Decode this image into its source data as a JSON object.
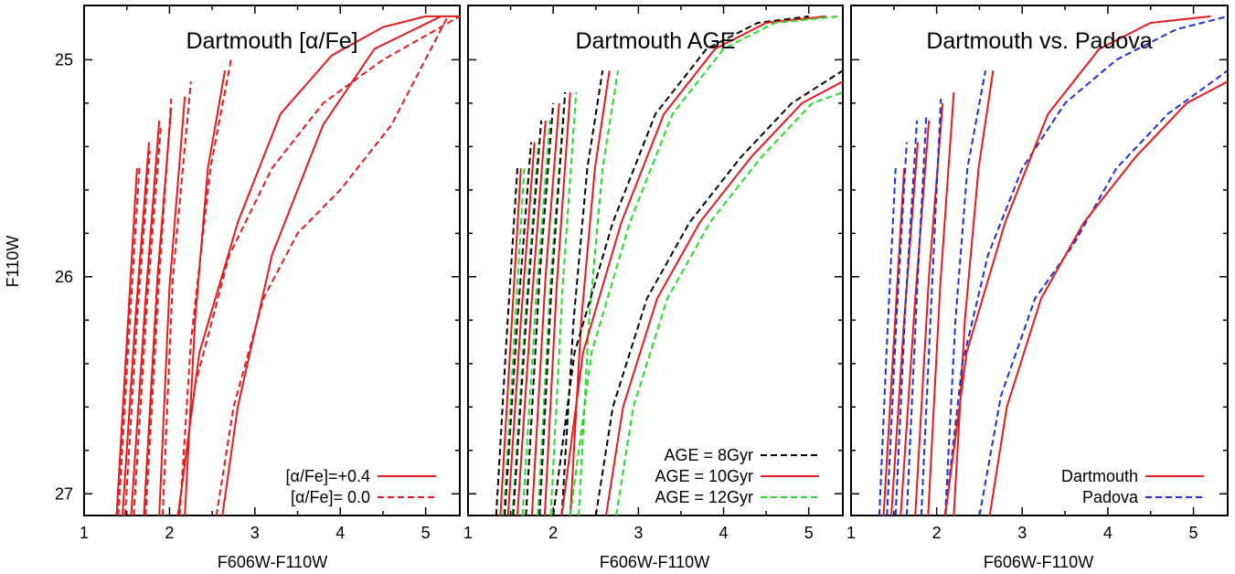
{
  "figure": {
    "ylabel": "F110W",
    "xlabel": "F606W-F110W"
  },
  "colors": {
    "red": "#e41a1c",
    "black": "#000000",
    "green": "#22dd22",
    "blue": "#1f2fd9"
  },
  "chart_data": [
    {
      "type": "line",
      "title": "Dartmouth [α/Fe]",
      "xlabel": "F606W-F110W",
      "ylabel": "F110W",
      "xlim": [
        1,
        5.4
      ],
      "ylim": [
        27.1,
        24.75
      ],
      "y_inverted": true,
      "xticks": [
        1,
        2,
        3,
        4,
        5
      ],
      "yticks": [
        25,
        26,
        27
      ],
      "legend_position": "bottom-right",
      "legend": [
        {
          "label": "[α/Fe]=+0.4",
          "color": "#e41a1c",
          "dash": "solid"
        },
        {
          "label": "[α/Fe]= 0.0",
          "color": "#e41a1c",
          "dash": "dashed"
        }
      ],
      "series": [
        {
          "color": "#e41a1c",
          "dash": "solid",
          "x": [
            1.38,
            1.5,
            1.62
          ],
          "y": [
            27.1,
            26.3,
            25.5
          ]
        },
        {
          "color": "#e41a1c",
          "dash": "dashed",
          "x": [
            1.4,
            1.52,
            1.65
          ],
          "y": [
            27.1,
            26.3,
            25.48
          ]
        },
        {
          "color": "#e41a1c",
          "dash": "solid",
          "x": [
            1.45,
            1.6,
            1.76
          ],
          "y": [
            27.1,
            26.2,
            25.38
          ]
        },
        {
          "color": "#e41a1c",
          "dash": "dashed",
          "x": [
            1.48,
            1.62,
            1.77
          ],
          "y": [
            27.1,
            26.2,
            25.42
          ]
        },
        {
          "color": "#e41a1c",
          "dash": "solid",
          "x": [
            1.55,
            1.72,
            1.88
          ],
          "y": [
            27.1,
            26.1,
            25.28
          ]
        },
        {
          "color": "#e41a1c",
          "dash": "dashed",
          "x": [
            1.58,
            1.74,
            1.9
          ],
          "y": [
            27.1,
            26.1,
            25.3
          ]
        },
        {
          "color": "#e41a1c",
          "dash": "solid",
          "x": [
            1.7,
            1.86,
            2.02
          ],
          "y": [
            27.1,
            26.0,
            25.22
          ]
        },
        {
          "color": "#e41a1c",
          "dash": "dashed",
          "x": [
            1.72,
            1.88,
            2.02
          ],
          "y": [
            27.1,
            26.0,
            25.18
          ]
        },
        {
          "color": "#e41a1c",
          "dash": "solid",
          "x": [
            1.88,
            2.0,
            2.18
          ],
          "y": [
            27.1,
            26.05,
            25.17
          ]
        },
        {
          "color": "#e41a1c",
          "dash": "dashed",
          "x": [
            1.92,
            2.04,
            2.25
          ],
          "y": [
            27.1,
            26.0,
            25.1
          ]
        },
        {
          "color": "#e41a1c",
          "dash": "solid",
          "x": [
            2.18,
            2.3,
            2.45,
            2.65
          ],
          "y": [
            27.1,
            26.2,
            25.5,
            25.05
          ]
        },
        {
          "color": "#e41a1c",
          "dash": "dashed",
          "x": [
            2.12,
            2.25,
            2.48,
            2.72
          ],
          "y": [
            27.1,
            26.3,
            25.5,
            25.0
          ]
        },
        {
          "color": "#e41a1c",
          "dash": "solid",
          "x": [
            2.62,
            2.8,
            3.2,
            3.8,
            4.4,
            5.18
          ],
          "y": [
            27.1,
            26.6,
            25.9,
            25.3,
            24.95,
            24.8
          ]
        },
        {
          "color": "#e41a1c",
          "dash": "dashed",
          "x": [
            2.55,
            2.75,
            3.1,
            3.5,
            4.0,
            4.6,
            5.26
          ],
          "y": [
            27.1,
            26.6,
            26.1,
            25.8,
            25.6,
            25.3,
            24.8
          ]
        },
        {
          "color": "#e41a1c",
          "dash": "solid",
          "x": [
            2.1,
            2.35,
            2.8,
            3.3,
            3.9,
            4.5,
            5.0,
            5.4
          ],
          "y": [
            27.1,
            26.35,
            25.75,
            25.25,
            24.98,
            24.85,
            24.8,
            24.8
          ]
        },
        {
          "color": "#e41a1c",
          "dash": "dashed",
          "x": [
            2.1,
            2.3,
            2.7,
            3.2,
            3.8,
            4.5,
            5.4
          ],
          "y": [
            27.1,
            26.5,
            25.9,
            25.5,
            25.2,
            25.0,
            24.8
          ]
        }
      ]
    },
    {
      "type": "line",
      "title": "Dartmouth AGE",
      "xlabel": "F606W-F110W",
      "xlim": [
        1,
        5.4
      ],
      "ylim": [
        27.1,
        24.75
      ],
      "y_inverted": true,
      "xticks": [
        1,
        2,
        3,
        4,
        5
      ],
      "yticks": [
        25,
        26,
        27
      ],
      "legend_position": "bottom-right",
      "legend": [
        {
          "label": "AGE =   8Gyr",
          "color": "#000000",
          "dash": "dashed"
        },
        {
          "label": "AGE = 10Gyr",
          "color": "#e41a1c",
          "dash": "solid"
        },
        {
          "label": "AGE = 12Gyr",
          "color": "#22dd22",
          "dash": "dashed"
        }
      ],
      "series": [
        {
          "color": "#000000",
          "dash": "dashed",
          "x": [
            1.33,
            1.45,
            1.58
          ],
          "y": [
            27.1,
            26.3,
            25.5
          ]
        },
        {
          "color": "#e41a1c",
          "dash": "solid",
          "x": [
            1.38,
            1.5,
            1.62
          ],
          "y": [
            27.1,
            26.3,
            25.5
          ]
        },
        {
          "color": "#22dd22",
          "dash": "dashed",
          "x": [
            1.42,
            1.54,
            1.66
          ],
          "y": [
            27.1,
            26.3,
            25.5
          ]
        },
        {
          "color": "#000000",
          "dash": "dashed",
          "x": [
            1.43,
            1.58,
            1.74
          ],
          "y": [
            27.1,
            26.2,
            25.38
          ]
        },
        {
          "color": "#e41a1c",
          "dash": "solid",
          "x": [
            1.47,
            1.62,
            1.78
          ],
          "y": [
            27.1,
            26.2,
            25.38
          ]
        },
        {
          "color": "#22dd22",
          "dash": "dashed",
          "x": [
            1.52,
            1.67,
            1.83
          ],
          "y": [
            27.1,
            26.2,
            25.38
          ]
        },
        {
          "color": "#000000",
          "dash": "dashed",
          "x": [
            1.53,
            1.7,
            1.86
          ],
          "y": [
            27.1,
            26.1,
            25.28
          ]
        },
        {
          "color": "#e41a1c",
          "dash": "solid",
          "x": [
            1.58,
            1.75,
            1.91
          ],
          "y": [
            27.1,
            26.1,
            25.28
          ]
        },
        {
          "color": "#22dd22",
          "dash": "dashed",
          "x": [
            1.64,
            1.8,
            1.96
          ],
          "y": [
            27.1,
            26.1,
            25.28
          ]
        },
        {
          "color": "#000000",
          "dash": "dashed",
          "x": [
            1.68,
            1.84,
            2.0
          ],
          "y": [
            27.1,
            26.0,
            25.2
          ]
        },
        {
          "color": "#e41a1c",
          "dash": "solid",
          "x": [
            1.75,
            1.91,
            2.07
          ],
          "y": [
            27.1,
            26.0,
            25.2
          ]
        },
        {
          "color": "#22dd22",
          "dash": "dashed",
          "x": [
            1.82,
            1.97,
            2.13
          ],
          "y": [
            27.1,
            26.0,
            25.2
          ]
        },
        {
          "color": "#000000",
          "dash": "dashed",
          "x": [
            1.84,
            1.98,
            2.14
          ],
          "y": [
            27.1,
            26.05,
            25.15
          ]
        },
        {
          "color": "#e41a1c",
          "dash": "solid",
          "x": [
            1.9,
            2.04,
            2.2
          ],
          "y": [
            27.1,
            26.05,
            25.15
          ]
        },
        {
          "color": "#22dd22",
          "dash": "dashed",
          "x": [
            1.97,
            2.11,
            2.27
          ],
          "y": [
            27.1,
            26.05,
            25.15
          ]
        },
        {
          "color": "#000000",
          "dash": "dashed",
          "x": [
            2.1,
            2.24,
            2.4,
            2.58
          ],
          "y": [
            27.1,
            26.2,
            25.5,
            25.05
          ]
        },
        {
          "color": "#e41a1c",
          "dash": "solid",
          "x": [
            2.2,
            2.33,
            2.49,
            2.66
          ],
          "y": [
            27.1,
            26.2,
            25.5,
            25.05
          ]
        },
        {
          "color": "#22dd22",
          "dash": "dashed",
          "x": [
            2.3,
            2.42,
            2.58,
            2.76
          ],
          "y": [
            27.1,
            26.2,
            25.5,
            25.05
          ]
        },
        {
          "color": "#000000",
          "dash": "dashed",
          "x": [
            2.0,
            2.25,
            2.7,
            3.2,
            3.8,
            4.4,
            5.0
          ],
          "y": [
            27.1,
            26.35,
            25.75,
            25.25,
            24.95,
            24.83,
            24.8
          ]
        },
        {
          "color": "#e41a1c",
          "dash": "solid",
          "x": [
            2.1,
            2.35,
            2.8,
            3.3,
            3.9,
            4.5,
            5.2
          ],
          "y": [
            27.1,
            26.35,
            25.75,
            25.25,
            24.95,
            24.83,
            24.8
          ]
        },
        {
          "color": "#22dd22",
          "dash": "dashed",
          "x": [
            2.2,
            2.45,
            2.9,
            3.4,
            4.0,
            4.6,
            5.35
          ],
          "y": [
            27.1,
            26.35,
            25.75,
            25.25,
            24.95,
            24.83,
            24.8
          ]
        },
        {
          "color": "#000000",
          "dash": "dashed",
          "x": [
            2.5,
            2.7,
            3.1,
            3.6,
            4.2,
            4.8,
            5.4
          ],
          "y": [
            27.1,
            26.6,
            26.1,
            25.75,
            25.45,
            25.2,
            25.05
          ]
        },
        {
          "color": "#e41a1c",
          "dash": "solid",
          "x": [
            2.62,
            2.82,
            3.22,
            3.72,
            4.32,
            4.92,
            5.4
          ],
          "y": [
            27.1,
            26.6,
            26.1,
            25.75,
            25.45,
            25.2,
            25.1
          ]
        },
        {
          "color": "#22dd22",
          "dash": "dashed",
          "x": [
            2.74,
            2.94,
            3.34,
            3.84,
            4.44,
            5.04,
            5.4
          ],
          "y": [
            27.1,
            26.6,
            26.1,
            25.75,
            25.45,
            25.2,
            25.15
          ]
        }
      ]
    },
    {
      "type": "line",
      "title": "Dartmouth vs. Padova",
      "xlabel": "F606W-F110W",
      "xlim": [
        1,
        5.4
      ],
      "ylim": [
        27.1,
        24.75
      ],
      "y_inverted": true,
      "xticks": [
        1,
        2,
        3,
        4,
        5
      ],
      "yticks": [
        25,
        26,
        27
      ],
      "legend_position": "bottom-right",
      "legend": [
        {
          "label": "Dartmouth",
          "color": "#e41a1c",
          "dash": "solid"
        },
        {
          "label": "Padova",
          "color": "#1f2fd9",
          "dash": "dashed"
        }
      ],
      "series": [
        {
          "color": "#1f2fd9",
          "dash": "dashed",
          "x": [
            1.33,
            1.42,
            1.52
          ],
          "y": [
            27.1,
            26.3,
            25.5
          ]
        },
        {
          "color": "#e41a1c",
          "dash": "solid",
          "x": [
            1.38,
            1.5,
            1.62
          ],
          "y": [
            27.1,
            26.3,
            25.5
          ]
        },
        {
          "color": "#1f2fd9",
          "dash": "dashed",
          "x": [
            1.42,
            1.53,
            1.65
          ],
          "y": [
            27.1,
            26.2,
            25.38
          ]
        },
        {
          "color": "#e41a1c",
          "dash": "solid",
          "x": [
            1.47,
            1.62,
            1.78
          ],
          "y": [
            27.1,
            26.2,
            25.38
          ]
        },
        {
          "color": "#1f2fd9",
          "dash": "dashed",
          "x": [
            1.52,
            1.64,
            1.77
          ],
          "y": [
            27.1,
            26.1,
            25.28
          ]
        },
        {
          "color": "#e41a1c",
          "dash": "solid",
          "x": [
            1.58,
            1.75,
            1.91
          ],
          "y": [
            27.1,
            26.1,
            25.28
          ]
        },
        {
          "color": "#1f2fd9",
          "dash": "dashed",
          "x": [
            1.65,
            1.78,
            1.88
          ],
          "y": [
            27.1,
            26.0,
            25.25
          ]
        },
        {
          "color": "#e41a1c",
          "dash": "solid",
          "x": [
            1.75,
            1.91,
            2.07
          ],
          "y": [
            27.1,
            26.0,
            25.2
          ]
        },
        {
          "color": "#1f2fd9",
          "dash": "dashed",
          "x": [
            1.82,
            1.94,
            2.05
          ],
          "y": [
            27.1,
            26.1,
            25.18
          ]
        },
        {
          "color": "#e41a1c",
          "dash": "solid",
          "x": [
            1.9,
            2.04,
            2.2
          ],
          "y": [
            27.1,
            26.05,
            25.15
          ]
        },
        {
          "color": "#1f2fd9",
          "dash": "dashed",
          "x": [
            2.1,
            2.22,
            2.36,
            2.57
          ],
          "y": [
            27.1,
            26.2,
            25.5,
            25.05
          ]
        },
        {
          "color": "#e41a1c",
          "dash": "solid",
          "x": [
            2.2,
            2.33,
            2.49,
            2.66
          ],
          "y": [
            27.1,
            26.2,
            25.5,
            25.05
          ]
        },
        {
          "color": "#1f2fd9",
          "dash": "dashed",
          "x": [
            2.1,
            2.3,
            2.6,
            3.0,
            3.5,
            4.1,
            4.8,
            5.4
          ],
          "y": [
            27.1,
            26.4,
            25.9,
            25.5,
            25.2,
            25.0,
            24.86,
            24.8
          ]
        },
        {
          "color": "#e41a1c",
          "dash": "solid",
          "x": [
            2.1,
            2.35,
            2.8,
            3.3,
            3.9,
            4.5,
            5.2
          ],
          "y": [
            27.1,
            26.35,
            25.75,
            25.25,
            24.95,
            24.83,
            24.8
          ]
        },
        {
          "color": "#1f2fd9",
          "dash": "dashed",
          "x": [
            2.5,
            2.75,
            3.15,
            3.6,
            4.1,
            4.7,
            5.4
          ],
          "y": [
            27.1,
            26.55,
            26.1,
            25.85,
            25.5,
            25.25,
            25.05
          ]
        },
        {
          "color": "#e41a1c",
          "dash": "solid",
          "x": [
            2.62,
            2.82,
            3.22,
            3.72,
            4.32,
            4.92,
            5.4
          ],
          "y": [
            27.1,
            26.6,
            26.1,
            25.75,
            25.45,
            25.2,
            25.1
          ]
        }
      ]
    }
  ]
}
